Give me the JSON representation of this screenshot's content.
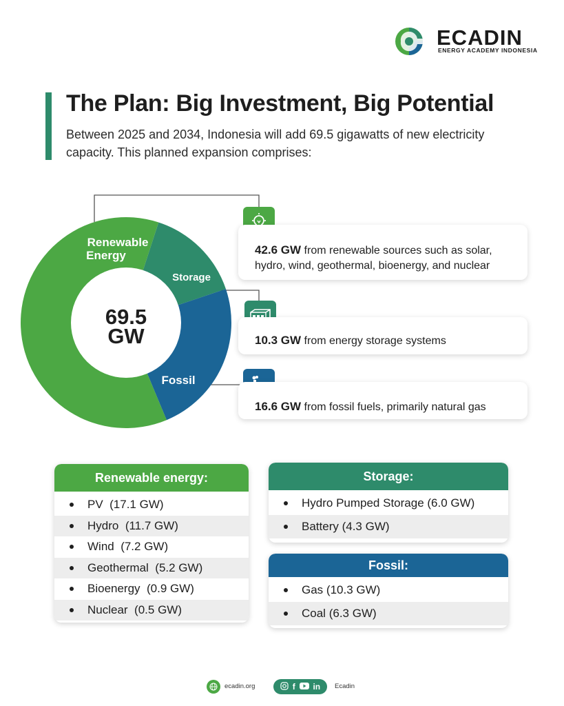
{
  "brand": {
    "name": "ECADIN",
    "tagline": "ENERGY ACADEMY INDONESIA",
    "colors": {
      "renewable": "#4ca844",
      "storage": "#2e8b6b",
      "fossil": "#1b6596"
    }
  },
  "header": {
    "title": "The Plan: Big Investment, Big Potential",
    "intro": "Between 2025 and 2034, Indonesia will add 69.5 gigawatts of new electricity capacity. This planned expansion comprises:"
  },
  "donut": {
    "center_value": "69.5",
    "center_unit": "GW",
    "segments": [
      {
        "label_line1": "Renewable",
        "label_line2": "Energy",
        "value_gw": 42.6,
        "color": "#4ca844"
      },
      {
        "label_line1": "Storage",
        "label_line2": "",
        "value_gw": 10.3,
        "color": "#2e8b6b"
      },
      {
        "label_line1": "Fossil",
        "label_line2": "",
        "value_gw": 16.6,
        "color": "#1b6596"
      }
    ]
  },
  "cards": {
    "renewable": {
      "amount": "42.6 GW",
      "text": "from renewable sources such as solar, hydro, wind, geothermal, bioenergy, and nuclear",
      "icon": "lightbulb-icon"
    },
    "storage": {
      "amount": "10.3 GW",
      "text": "from energy storage systems",
      "icon": "battery-icon"
    },
    "fossil": {
      "amount": "16.6 GW",
      "text": "from fossil fuels, primarily natural gas",
      "icon": "factory-icon"
    }
  },
  "breakdown": {
    "renewable": {
      "title": "Renewable energy:",
      "items": [
        {
          "name": "PV",
          "value": "(17.1 GW)"
        },
        {
          "name": "Hydro",
          "value": "(11.7 GW)"
        },
        {
          "name": "Wind",
          "value": "(7.2 GW)"
        },
        {
          "name": "Geothermal",
          "value": "(5.2 GW)"
        },
        {
          "name": "Bioenergy",
          "value": "(0.9 GW)"
        },
        {
          "name": "Nuclear",
          "value": "(0.5 GW)"
        }
      ]
    },
    "storage": {
      "title": "Storage:",
      "items": [
        {
          "name": "Hydro Pumped Storage",
          "value": "(6.0 GW)"
        },
        {
          "name": "Battery",
          "value": "(4.3 GW)"
        }
      ]
    },
    "fossil": {
      "title": "Fossil:",
      "items": [
        {
          "name": "Gas",
          "value": "(10.3 GW)"
        },
        {
          "name": "Coal",
          "value": "(6.3 GW)"
        }
      ]
    }
  },
  "footer": {
    "website": "ecadin.org",
    "social_handle": "Ecadin",
    "social_icons": [
      "instagram-icon",
      "facebook-icon",
      "youtube-icon",
      "linkedin-icon"
    ]
  }
}
